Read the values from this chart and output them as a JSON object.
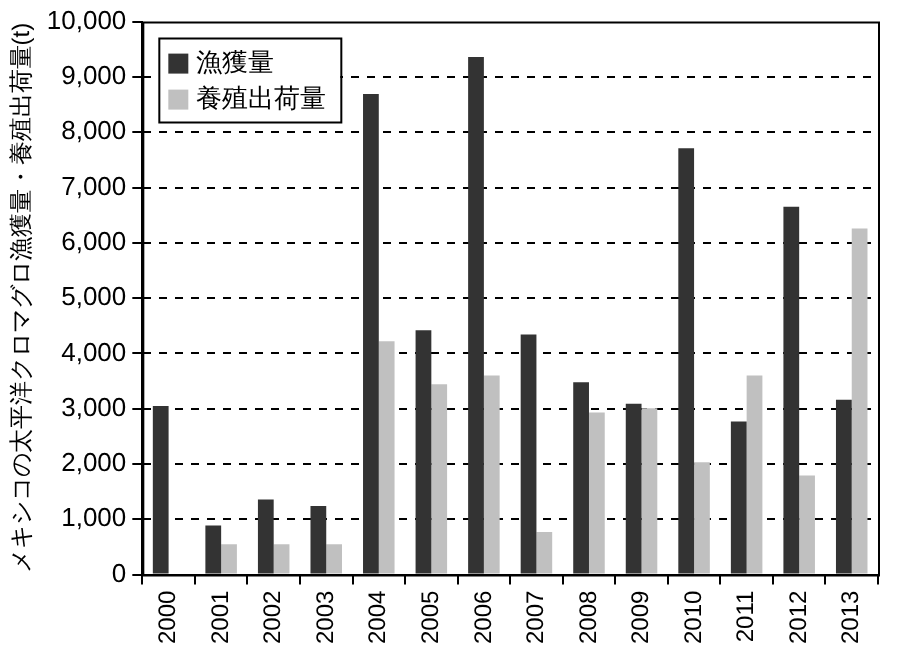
{
  "chart_data": {
    "type": "bar",
    "ylabel": "メキシコの太平洋クロマグロ漁獲量・養殖出荷量(t)",
    "categories": [
      "2000",
      "2001",
      "2002",
      "2003",
      "2004",
      "2005",
      "2006",
      "2007",
      "2008",
      "2009",
      "2010",
      "2011",
      "2012",
      "2013"
    ],
    "series": [
      {
        "name": "漁獲量",
        "color": "#333333",
        "values": [
          3050,
          890,
          1360,
          1240,
          8690,
          4420,
          9360,
          4340,
          3480,
          3090,
          7710,
          2770,
          6650,
          3160
        ]
      },
      {
        "name": "養殖出荷量",
        "color": "#c0c0c0",
        "values": [
          0,
          550,
          550,
          550,
          4220,
          3440,
          3600,
          770,
          2930,
          3010,
          2030,
          3600,
          1790,
          6260
        ]
      }
    ],
    "ylim": [
      0,
      10000
    ],
    "yticks": [
      0,
      {
        "value": 1000,
        "label": "1,000"
      },
      {
        "value": 2000,
        "label": "2,000"
      },
      {
        "value": 3000,
        "label": "3,000"
      },
      {
        "value": 4000,
        "label": "4,000"
      },
      {
        "value": 5000,
        "label": "5,000"
      },
      {
        "value": 6000,
        "label": "6,000"
      },
      {
        "value": 7000,
        "label": "7,000"
      },
      {
        "value": 8000,
        "label": "8,000"
      },
      {
        "value": 9000,
        "label": "9,000"
      },
      {
        "value": 10000,
        "label": "10,000"
      }
    ],
    "grid": "y",
    "legend": "top left"
  }
}
